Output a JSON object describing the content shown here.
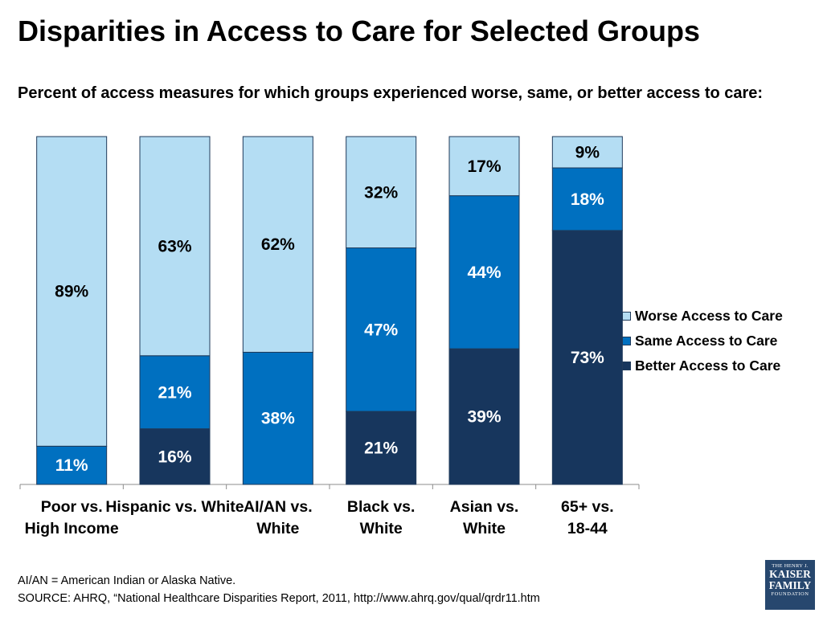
{
  "title": "Disparities in Access to Care for Selected Groups",
  "subtitle": "Percent of access measures for which groups experienced worse, same, or better access to care:",
  "chart_data": {
    "type": "bar",
    "stacked": true,
    "categories": [
      [
        "Poor vs.",
        "High Income"
      ],
      [
        "Hispanic vs. White",
        ""
      ],
      [
        "AI/AN vs.",
        "White"
      ],
      [
        "Black vs.",
        "White"
      ],
      [
        "Asian vs.",
        "White"
      ],
      [
        "65+ vs.",
        "18-44"
      ]
    ],
    "series": [
      {
        "name": "Better Access to Care",
        "color": "#17365d",
        "values": [
          0,
          16,
          0,
          21,
          39,
          73
        ]
      },
      {
        "name": "Same Access to Care",
        "color": "#0070c0",
        "values": [
          11,
          21,
          38,
          47,
          44,
          18
        ]
      },
      {
        "name": "Worse Access to Care",
        "color": "#b4ddf3",
        "values": [
          89,
          63,
          62,
          32,
          17,
          9
        ]
      }
    ],
    "legend_order": [
      "Worse Access to Care",
      "Same Access to Care",
      "Better Access to Care"
    ],
    "legend_position": "right",
    "ylim": [
      0,
      100
    ],
    "grid": false
  },
  "footnote": {
    "line1": "AI/AN = American Indian or Alaska Native.",
    "line2": "SOURCE: AHRQ, “National Healthcare Disparities Report, 2011, http://www.ahrq.gov/qual/qrdr11.htm"
  },
  "logo": {
    "line1": "THE HENRY J.",
    "line2": "KAISER",
    "line3": "FAMILY",
    "line4": "FOUNDATION"
  }
}
